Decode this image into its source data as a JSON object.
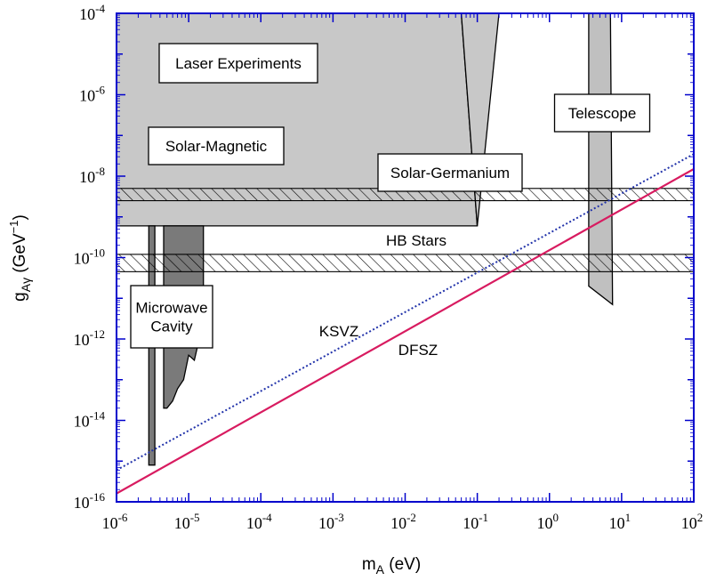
{
  "chart_data": {
    "type": "region",
    "xlabel": "m_A (eV)",
    "ylabel": "g_Aγ (GeV^-1)",
    "xscale": "log",
    "yscale": "log",
    "xlim": [
      1e-06,
      100
    ],
    "ylim": [
      1e-16,
      0.0001
    ],
    "x_ticks": [
      {
        "exp": "-6"
      },
      {
        "exp": "-5"
      },
      {
        "exp": "-4"
      },
      {
        "exp": "-3"
      },
      {
        "exp": "-2"
      },
      {
        "exp": "-1"
      },
      {
        "exp": "0"
      },
      {
        "exp": "1"
      },
      {
        "exp": "2"
      }
    ],
    "y_ticks": [
      {
        "exp": "-16"
      },
      {
        "exp": "-14"
      },
      {
        "exp": "-12"
      },
      {
        "exp": "-10"
      },
      {
        "exp": "-8"
      },
      {
        "exp": "-6"
      },
      {
        "exp": "-4"
      }
    ],
    "tick_base": "10",
    "regions": [
      {
        "name": "Laser Experiments",
        "label": "Laser Experiments",
        "color": "#e3e3e3",
        "boundary": [
          [
            1e-06,
            0.0001
          ],
          [
            0.0052,
            0.0001
          ],
          [
            0.00055,
            4e-07
          ],
          [
            1e-06,
            4e-07
          ]
        ]
      },
      {
        "name": "Solar-Magnetic",
        "label": "Solar-Magnetic",
        "color": "#c8c8c8",
        "boundary": [
          [
            1e-06,
            0.0001
          ],
          [
            0.06,
            0.0001
          ],
          [
            0.1,
            6e-10
          ],
          [
            1e-06,
            6e-10
          ]
        ]
      },
      {
        "name": "Solar-Germanium",
        "label": "Solar-Germanium",
        "color": "#c8c8c8",
        "boundary": [
          [
            0.06,
            0.0001
          ],
          [
            0.2,
            0.0001
          ],
          [
            0.1,
            6e-10
          ]
        ]
      },
      {
        "name": "Telescope",
        "label": "Telescope",
        "color": "#c0c0c0",
        "boundary": [
          [
            3.5,
            0.0001
          ],
          [
            7,
            0.0001
          ],
          [
            7.5,
            7e-12
          ],
          [
            3.5,
            2e-11
          ]
        ]
      },
      {
        "name": "Microwave Cavity (narrow)",
        "label": "Microwave",
        "color": "#7a7a7a",
        "boundary": [
          [
            2.8e-06,
            6e-10
          ],
          [
            3.4e-06,
            6e-10
          ],
          [
            3.4e-06,
            8e-16
          ],
          [
            2.8e-06,
            8e-16
          ]
        ]
      },
      {
        "name": "Microwave Cavity (wide)",
        "label": "Cavity",
        "color": "#7a7a7a",
        "boundary": [
          [
            4.5e-06,
            6e-10
          ],
          [
            1.6e-05,
            6e-10
          ],
          [
            1.6e-05,
            1e-12
          ],
          [
            1.4e-05,
            1e-12
          ],
          [
            1.2e-05,
            3e-13
          ],
          [
            1e-05,
            4e-13
          ],
          [
            8.5e-06,
            1e-13
          ],
          [
            7e-06,
            6e-14
          ],
          [
            6e-06,
            3e-14
          ],
          [
            5e-06,
            2e-14
          ],
          [
            4.5e-06,
            2e-14
          ]
        ]
      }
    ],
    "hatched_bands": [
      {
        "name": "HB Stars",
        "label": "HB Stars",
        "ymin": 2.5e-09,
        "ymax": 5e-09
      },
      {
        "name": "HB Stars lower",
        "label": "",
        "ymin": 4.5e-11,
        "ymax": 1.2e-10
      }
    ],
    "lines": [
      {
        "name": "KSVZ",
        "label": "KSVZ",
        "style": "dotted",
        "color": "#2233aa",
        "points": [
          [
            1e-06,
            6e-16
          ],
          [
            100,
            3.5e-08
          ]
        ]
      },
      {
        "name": "DFSZ",
        "label": "DFSZ",
        "style": "solid",
        "color": "#d81b60",
        "points": [
          [
            1e-06,
            1.6e-16
          ],
          [
            100,
            1.5e-08
          ]
        ]
      }
    ]
  },
  "colors": {
    "frame": "#0000cc",
    "text": "#000000"
  }
}
